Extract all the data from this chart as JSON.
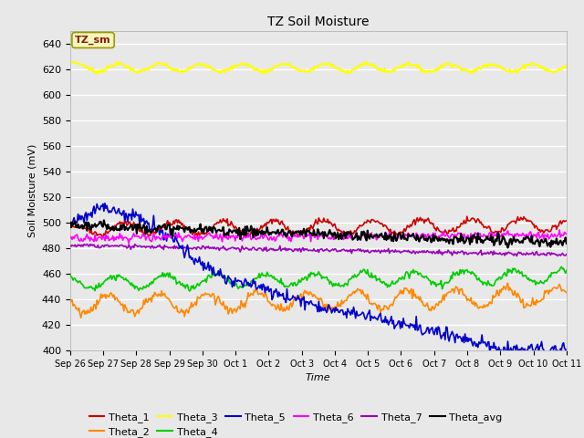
{
  "title": "TZ Soil Moisture",
  "xlabel": "Time",
  "ylabel": "Soil Moisture (mV)",
  "ylim": [
    400,
    650
  ],
  "yticks": [
    400,
    420,
    440,
    460,
    480,
    500,
    520,
    540,
    560,
    580,
    600,
    620,
    640
  ],
  "bg_color": "#e8e8e8",
  "fig_color": "#e8e8e8",
  "legend_label": "TZ_sm",
  "legend_label_color": "#8B1A00",
  "legend_label_bg": "#f5f5c0",
  "legend_label_edge": "#999900",
  "series": {
    "Theta_1": {
      "color": "#cc0000",
      "lw": 1.2
    },
    "Theta_2": {
      "color": "#ff8800",
      "lw": 1.2
    },
    "Theta_3": {
      "color": "#ffff00",
      "lw": 1.5
    },
    "Theta_4": {
      "color": "#00cc00",
      "lw": 1.2
    },
    "Theta_5": {
      "color": "#0000cc",
      "lw": 1.2
    },
    "Theta_6": {
      "color": "#ff00ff",
      "lw": 1.2
    },
    "Theta_7": {
      "color": "#9900bb",
      "lw": 1.2
    },
    "Theta_avg": {
      "color": "#000000",
      "lw": 1.5
    }
  },
  "num_points": 500,
  "xtick_labels": [
    "Sep 26",
    "Sep 27",
    "Sep 28",
    "Sep 29",
    "Sep 30",
    "Oct 1",
    "Oct 2",
    "Oct 3",
    "Oct 4",
    "Oct 5",
    "Oct 6",
    "Oct 7",
    "Oct 8",
    "Oct 9",
    "Oct 10",
    "Oct 11"
  ],
  "xtick_positions": [
    0,
    1,
    2,
    3,
    4,
    5,
    6,
    7,
    8,
    9,
    10,
    11,
    12,
    13,
    14,
    15
  ]
}
